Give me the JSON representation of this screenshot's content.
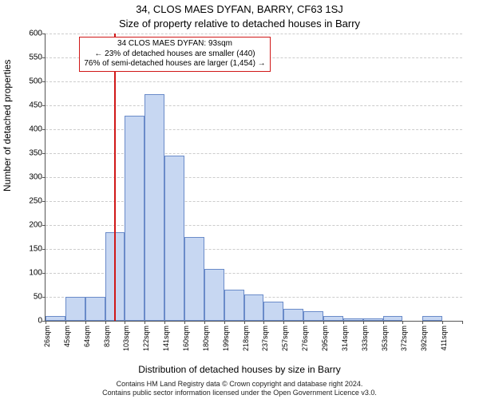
{
  "title": "34, CLOS MAES DYFAN, BARRY, CF63 1SJ",
  "subtitle": "Size of property relative to detached houses in Barry",
  "y_axis_label": "Number of detached properties",
  "x_axis_label": "Distribution of detached houses by size in Barry",
  "footer_line1": "Contains HM Land Registry data © Crown copyright and database right 2024.",
  "footer_line2": "Contains public sector information licensed under the Open Government Licence v3.0.",
  "annotation": {
    "line1": "34 CLOS MAES DYFAN: 93sqm",
    "line2": "← 23% of detached houses are smaller (440)",
    "line3": "76% of semi-detached houses are larger (1,454) →"
  },
  "chart": {
    "type": "bar",
    "ylim": [
      0,
      600
    ],
    "ytick_step": 50,
    "bar_fill": "#c7d7f2",
    "bar_stroke": "#6a8bc9",
    "grid_color": "#cccccc",
    "axis_color": "#555555",
    "marker_color": "#d01818",
    "background_color": "#ffffff",
    "title_fontsize": 13,
    "label_fontsize": 12,
    "tick_fontsize": 10,
    "marker_x_sqm": 93,
    "x_start": 26,
    "x_step": 19.3,
    "categories": [
      "26sqm",
      "45sqm",
      "64sqm",
      "83sqm",
      "103sqm",
      "122sqm",
      "141sqm",
      "160sqm",
      "180sqm",
      "199sqm",
      "218sqm",
      "237sqm",
      "257sqm",
      "276sqm",
      "295sqm",
      "314sqm",
      "333sqm",
      "353sqm",
      "372sqm",
      "392sqm",
      "411sqm"
    ],
    "values": [
      10,
      50,
      50,
      185,
      428,
      473,
      345,
      175,
      108,
      65,
      55,
      40,
      25,
      20,
      10,
      5,
      5,
      10,
      0,
      10,
      0
    ]
  }
}
